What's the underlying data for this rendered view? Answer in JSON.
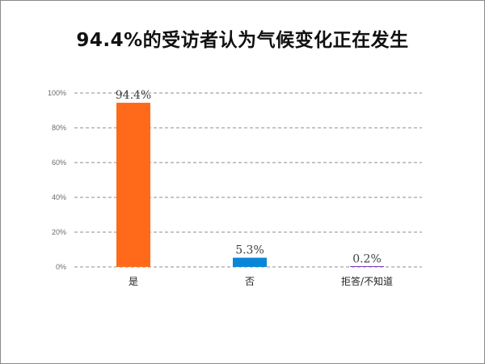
{
  "chart_data": {
    "type": "bar",
    "title": "94.4%的受访者认为气候变化正在发生",
    "categories": [
      "是",
      "否",
      "拒答/不知道"
    ],
    "values": [
      94.4,
      5.3,
      0.2
    ],
    "data_labels": [
      "94.4%",
      "5.3%",
      "0.2%"
    ],
    "colors": [
      "#FF6A1A",
      "#0A86D8",
      "#7B3FC4"
    ],
    "ylim": [
      0,
      100
    ],
    "yticks": [
      0,
      20,
      40,
      60,
      80,
      100
    ],
    "ytick_labels": [
      "0%",
      "20%",
      "40%",
      "60%",
      "80%",
      "100%"
    ],
    "grid": true,
    "grid_style": "dashed"
  }
}
